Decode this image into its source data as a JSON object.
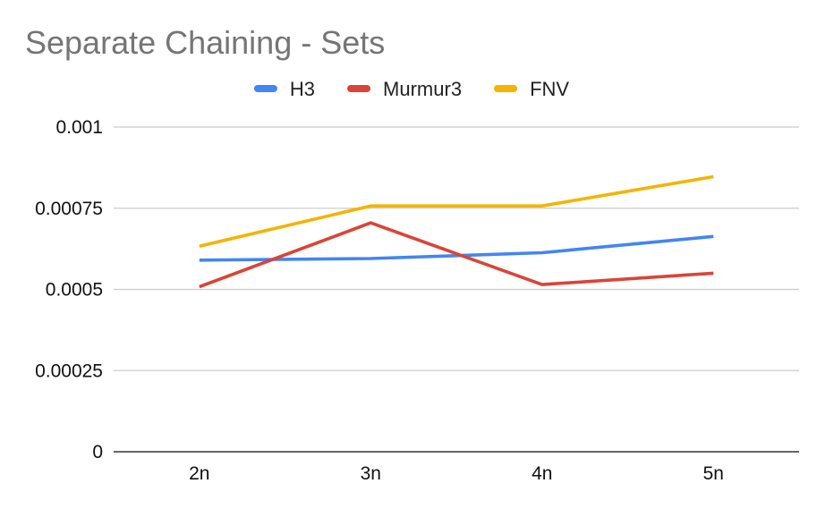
{
  "chart_data": {
    "type": "line",
    "title": "Separate Chaining - Sets",
    "xlabel": "",
    "ylabel": "",
    "categories": [
      "2n",
      "3n",
      "4n",
      "5n"
    ],
    "ylim": [
      0,
      0.001
    ],
    "yticks": [
      0,
      0.00025,
      0.0005,
      0.00075,
      0.001
    ],
    "ytick_labels": [
      "0",
      "0.00025",
      "0.0005",
      "0.00075",
      "0.001"
    ],
    "grid": true,
    "legend_position": "top",
    "series": [
      {
        "name": "H3",
        "color": "#4285f4",
        "values": [
          0.00059,
          0.000595,
          0.000613,
          0.000663
        ]
      },
      {
        "name": "Murmur3",
        "color": "#db4437",
        "values": [
          0.000508,
          0.000705,
          0.000515,
          0.00055
        ]
      },
      {
        "name": "FNV",
        "color": "#f4b400",
        "values": [
          0.000633,
          0.000757,
          0.000757,
          0.000847
        ]
      }
    ]
  }
}
